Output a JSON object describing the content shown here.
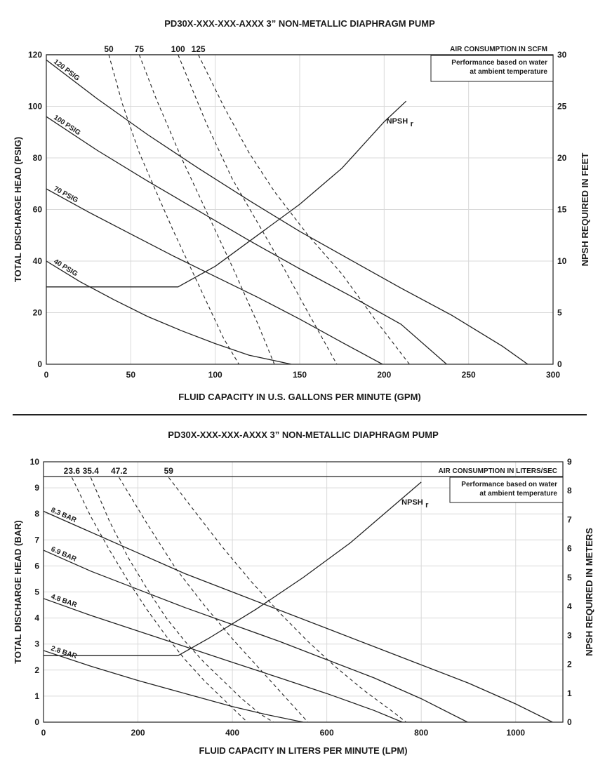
{
  "chart_data": [
    {
      "type": "line",
      "title": "PD30X-XXX-XXX-AXXX 3” NON-METALLIC DIAPHRAGM PUMP",
      "xlabel": "FLUID CAPACITY IN U.S. GALLONS PER MINUTE (GPM)",
      "ylabel": "TOTAL DISCHARGE HEAD (PSIG)",
      "y2label": "NPSH REQUIRED IN FEET",
      "xlim": [
        0,
        300
      ],
      "ylim": [
        0,
        120
      ],
      "y2lim": [
        0,
        30
      ],
      "xticks": [
        0,
        50,
        100,
        150,
        200,
        250,
        300
      ],
      "yticks": [
        0,
        20,
        40,
        60,
        80,
        100,
        120
      ],
      "y2ticks": [
        0,
        5,
        10,
        15,
        20,
        25,
        30
      ],
      "grid": true,
      "air_header": "AIR CONSUMPTION IN SCFM",
      "note_lines": [
        "Performance based on water",
        "at ambient temperature"
      ],
      "npsh_label": "NPSH",
      "npsh_sub": "r",
      "series": [
        {
          "name": "120 PSIG",
          "x": [
            0,
            30,
            60,
            90,
            120,
            150,
            180,
            210,
            240,
            270,
            285
          ],
          "y": [
            118,
            103,
            89,
            76,
            63.5,
            51.5,
            40.5,
            29.5,
            19,
            7,
            0
          ]
        },
        {
          "name": "100 PSIG",
          "x": [
            0,
            30,
            60,
            90,
            120,
            150,
            180,
            210,
            237
          ],
          "y": [
            96,
            83,
            71,
            59.5,
            48,
            37,
            26.5,
            15.5,
            0
          ]
        },
        {
          "name": "70 PSIG",
          "x": [
            0,
            25,
            50,
            75,
            100,
            125,
            150,
            175,
            199
          ],
          "y": [
            68,
            59,
            50.5,
            42,
            34,
            26,
            17.5,
            8.5,
            0
          ]
        },
        {
          "name": "40 PSIG",
          "x": [
            0,
            20,
            40,
            60,
            80,
            100,
            120,
            145
          ],
          "y": [
            40,
            32,
            25,
            18.5,
            13,
            8,
            3.5,
            0
          ]
        }
      ],
      "air_series": [
        {
          "name": "50",
          "x": [
            37,
            45,
            55,
            65,
            75,
            85,
            95,
            105,
            114
          ],
          "y": [
            120,
            101,
            82,
            67,
            52,
            38,
            24,
            10,
            0
          ]
        },
        {
          "name": "75",
          "x": [
            55,
            65,
            80,
            95,
            110,
            125,
            135
          ],
          "y": [
            120,
            103,
            80,
            59,
            38,
            16,
            0
          ]
        },
        {
          "name": "100",
          "x": [
            78,
            95,
            110,
            125,
            140,
            155,
            172
          ],
          "y": [
            120,
            93,
            72,
            55,
            38,
            20,
            0
          ]
        },
        {
          "name": "125",
          "x": [
            90,
            105,
            120,
            135,
            155,
            175,
            195,
            215
          ],
          "y": [
            120,
            100,
            82,
            67,
            50,
            35,
            17,
            0
          ]
        }
      ],
      "npsh_curve": {
        "x": [
          0,
          78,
          100,
          125,
          150,
          175,
          200,
          213
        ],
        "y": [
          7.5,
          7.5,
          9.5,
          12.5,
          15.5,
          19,
          23.5,
          25.5
        ]
      }
    },
    {
      "type": "line",
      "title": "PD30X-XXX-XXX-AXXX 3” NON-METALLIC DIAPHRAGM PUMP",
      "xlabel": "FLUID CAPACITY IN LITERS PER MINUTE (LPM)",
      "ylabel": "TOTAL DISCHARGE HEAD (BAR)",
      "y2label": "NPSH REQUIRED IN METERS",
      "xlim": [
        0,
        1100
      ],
      "ylim": [
        0,
        10
      ],
      "y2lim": [
        0,
        9
      ],
      "xticks": [
        0,
        200,
        400,
        600,
        800,
        1000
      ],
      "yticks": [
        0,
        1,
        2,
        3,
        4,
        5,
        6,
        7,
        8,
        9,
        10
      ],
      "y2ticks": [
        0,
        1,
        2,
        3,
        4,
        5,
        6,
        7,
        8,
        9
      ],
      "grid": true,
      "air_header": "AIR CONSUMPTION IN LITERS/SEC",
      "note_lines": [
        "Performance based on water",
        "at ambient temperature"
      ],
      "npsh_label": "NPSH",
      "npsh_sub": "r",
      "series": [
        {
          "name": "8.3 BAR",
          "x": [
            0,
            100,
            200,
            300,
            400,
            500,
            600,
            700,
            800,
            900,
            1000,
            1078
          ],
          "y": [
            8.1,
            7.3,
            6.5,
            5.7,
            5,
            4.3,
            3.6,
            2.9,
            2.2,
            1.5,
            0.7,
            0
          ]
        },
        {
          "name": "6.9 BAR",
          "x": [
            0,
            100,
            200,
            300,
            400,
            500,
            600,
            700,
            800,
            898
          ],
          "y": [
            6.6,
            5.8,
            5.1,
            4.4,
            3.75,
            3.1,
            2.4,
            1.7,
            0.9,
            0
          ]
        },
        {
          "name": "4.8 BAR",
          "x": [
            0,
            100,
            200,
            300,
            400,
            500,
            600,
            700,
            760
          ],
          "y": [
            4.75,
            4.1,
            3.5,
            2.9,
            2.3,
            1.7,
            1.1,
            0.45,
            0
          ]
        },
        {
          "name": "2.8 BAR",
          "x": [
            0,
            100,
            200,
            300,
            400,
            470,
            550
          ],
          "y": [
            2.75,
            2.15,
            1.6,
            1.1,
            0.6,
            0.3,
            0
          ]
        }
      ],
      "air_series": [
        {
          "name": "23.6",
          "x": [
            60,
            100,
            140,
            180,
            220,
            260,
            300,
            340,
            380,
            420,
            432
          ],
          "y": [
            9.4,
            7.9,
            6.6,
            5.4,
            4.3,
            3.3,
            2.4,
            1.6,
            0.9,
            0.2,
            0
          ]
        },
        {
          "name": "35.4",
          "x": [
            100,
            140,
            180,
            220,
            260,
            300,
            340,
            380,
            420,
            460,
            487
          ],
          "y": [
            9.4,
            7.7,
            6.3,
            5.1,
            4,
            3.1,
            2.3,
            1.6,
            0.9,
            0.3,
            0
          ]
        },
        {
          "name": "47.2",
          "x": [
            160,
            220,
            280,
            340,
            400,
            460,
            520,
            560
          ],
          "y": [
            9.4,
            7.6,
            5.9,
            4.5,
            3.2,
            2,
            0.8,
            0
          ]
        },
        {
          "name": "59",
          "x": [
            265,
            320,
            380,
            440,
            500,
            560,
            620,
            680,
            740,
            768
          ],
          "y": [
            9.4,
            8.1,
            6.7,
            5.4,
            4.2,
            3.1,
            2.1,
            1.2,
            0.4,
            0
          ]
        }
      ],
      "npsh_curve": {
        "x": [
          0,
          285,
          350,
          450,
          550,
          650,
          750,
          800
        ],
        "y": [
          2.3,
          2.3,
          2.9,
          3.9,
          5,
          6.2,
          7.6,
          8.3
        ]
      }
    }
  ]
}
